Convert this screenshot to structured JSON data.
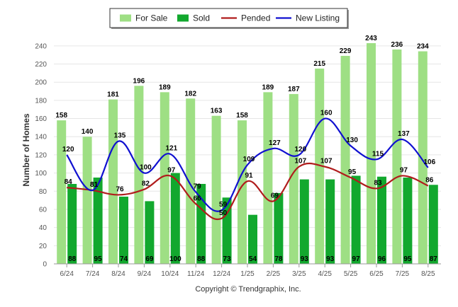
{
  "chart_data": {
    "type": "bar",
    "categories": [
      "6/24",
      "7/24",
      "8/24",
      "9/24",
      "10/24",
      "11/24",
      "12/24",
      "1/25",
      "2/25",
      "3/25",
      "4/25",
      "5/25",
      "6/25",
      "7/25",
      "8/25"
    ],
    "ylabel": "Number of Homes",
    "ylim": [
      0,
      250
    ],
    "yticks": [
      0,
      20,
      40,
      60,
      80,
      100,
      120,
      140,
      160,
      180,
      200,
      220,
      240
    ],
    "grid": true,
    "legend_position": "top-center",
    "series": [
      {
        "name": "For Sale",
        "kind": "bar",
        "color": "#9edf84",
        "values": [
          158,
          140,
          181,
          196,
          189,
          182,
          163,
          158,
          189,
          187,
          215,
          229,
          243,
          236,
          234
        ]
      },
      {
        "name": "Sold",
        "kind": "bar",
        "color": "#12a82e",
        "values": [
          88,
          95,
          74,
          69,
          100,
          88,
          73,
          54,
          78,
          93,
          93,
          97,
          96,
          95,
          87
        ]
      },
      {
        "name": "Pended",
        "kind": "line",
        "color": "#b01c1c",
        "values": [
          84,
          81,
          76,
          82,
          97,
          66,
          50,
          91,
          69,
          107,
          107,
          95,
          83,
          97,
          86
        ]
      },
      {
        "name": "New Listing",
        "kind": "line",
        "color": "#1010d0",
        "values": [
          120,
          81,
          135,
          100,
          121,
          79,
          59,
          109,
          127,
          120,
          160,
          130,
          115,
          137,
          106
        ]
      }
    ],
    "footer": "Copyright © Trendgraphix, Inc."
  }
}
